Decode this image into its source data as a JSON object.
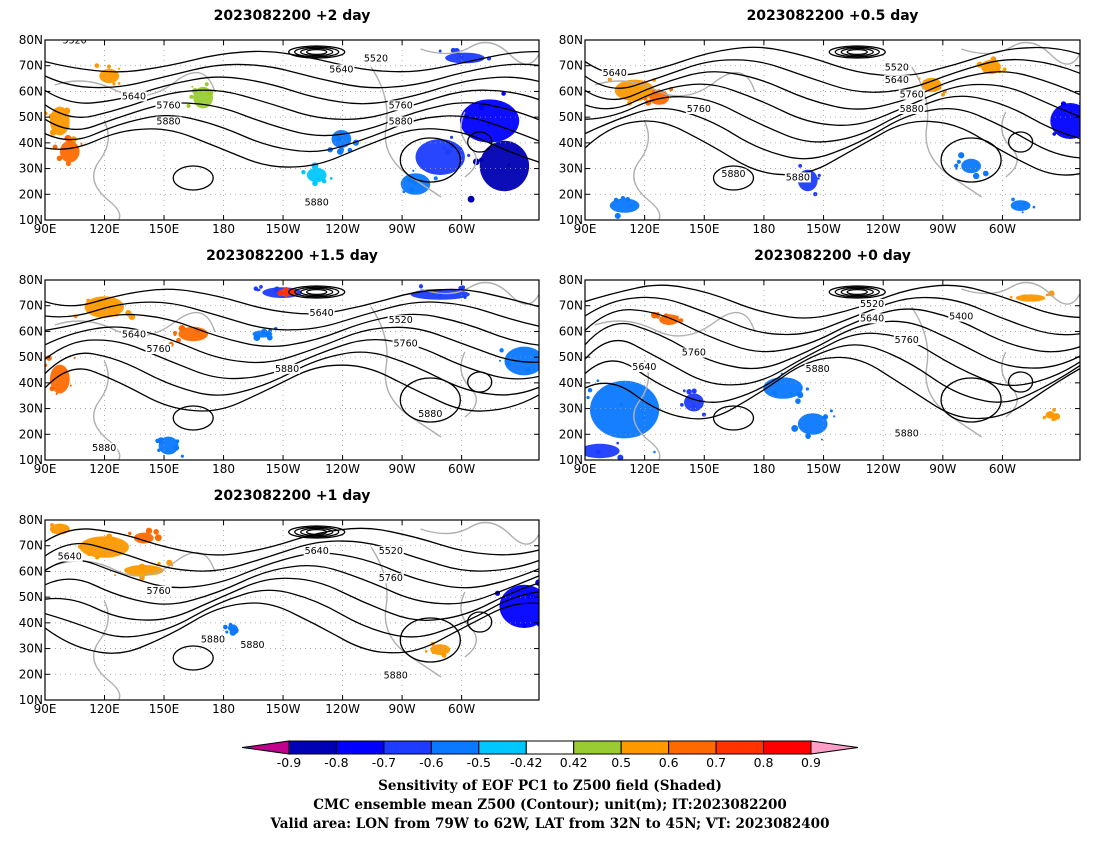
{
  "chart_data": {
    "type": "heatmap",
    "panels": [
      {
        "title": "2023082200 +2 day",
        "lead_days": 2,
        "position": "top-left"
      },
      {
        "title": "2023082200 +0.5 day",
        "lead_days": 0.5,
        "position": "top-right"
      },
      {
        "title": "2023082200 +1.5 day",
        "lead_days": 1.5,
        "position": "middle-left"
      },
      {
        "title": "2023082200 +0 day",
        "lead_days": 0,
        "position": "middle-right"
      },
      {
        "title": "2023082200 +1 day",
        "lead_days": 1,
        "position": "bottom-left"
      }
    ],
    "x_ticks": [
      "90E",
      "120E",
      "150E",
      "180",
      "150W",
      "120W",
      "90W",
      "60W"
    ],
    "y_ticks": [
      "10N",
      "20N",
      "30N",
      "40N",
      "50N",
      "60N",
      "70N",
      "80N"
    ],
    "contour_labels": [
      [
        "5520",
        "5640",
        "5520",
        "5640",
        "5760",
        "5760",
        "5880",
        "5880",
        "5880"
      ],
      [
        "5640",
        "5520",
        "5640",
        "5760",
        "5760",
        "5880",
        "5880",
        "5880"
      ],
      [
        "5640",
        "5640",
        "5520",
        "5760",
        "5760",
        "5880",
        "5880",
        "5880"
      ],
      [
        "5520",
        "5640",
        "5400",
        "5760",
        "5760",
        "5640",
        "5880",
        "5880"
      ],
      [
        "5640",
        "5640",
        "5520",
        "5760",
        "5760",
        "5880",
        "5880",
        "5880"
      ]
    ],
    "colorbar": {
      "ticks": [
        "-0.9",
        "-0.8",
        "-0.7",
        "-0.6",
        "-0.5",
        "-0.42",
        "0.42",
        "0.5",
        "0.6",
        "0.7",
        "0.8",
        "0.9"
      ],
      "colors": [
        "#c0008c",
        "#0000b4",
        "#0000ff",
        "#1e3cff",
        "#0a78ff",
        "#00c8ff",
        "#ffffff",
        "#99cc33",
        "#ff9900",
        "#ff6a00",
        "#ff3200",
        "#ff0000",
        "#ff9ec8"
      ]
    },
    "caption": [
      "Sensitivity of EOF PC1 to Z500 field (Shaded)",
      "CMC ensemble mean Z500 (Contour); unit(m); IT:2023082200",
      "Valid area: LON from 79W to 62W, LAT from 32N to 45N; VT: 2023082400"
    ]
  }
}
